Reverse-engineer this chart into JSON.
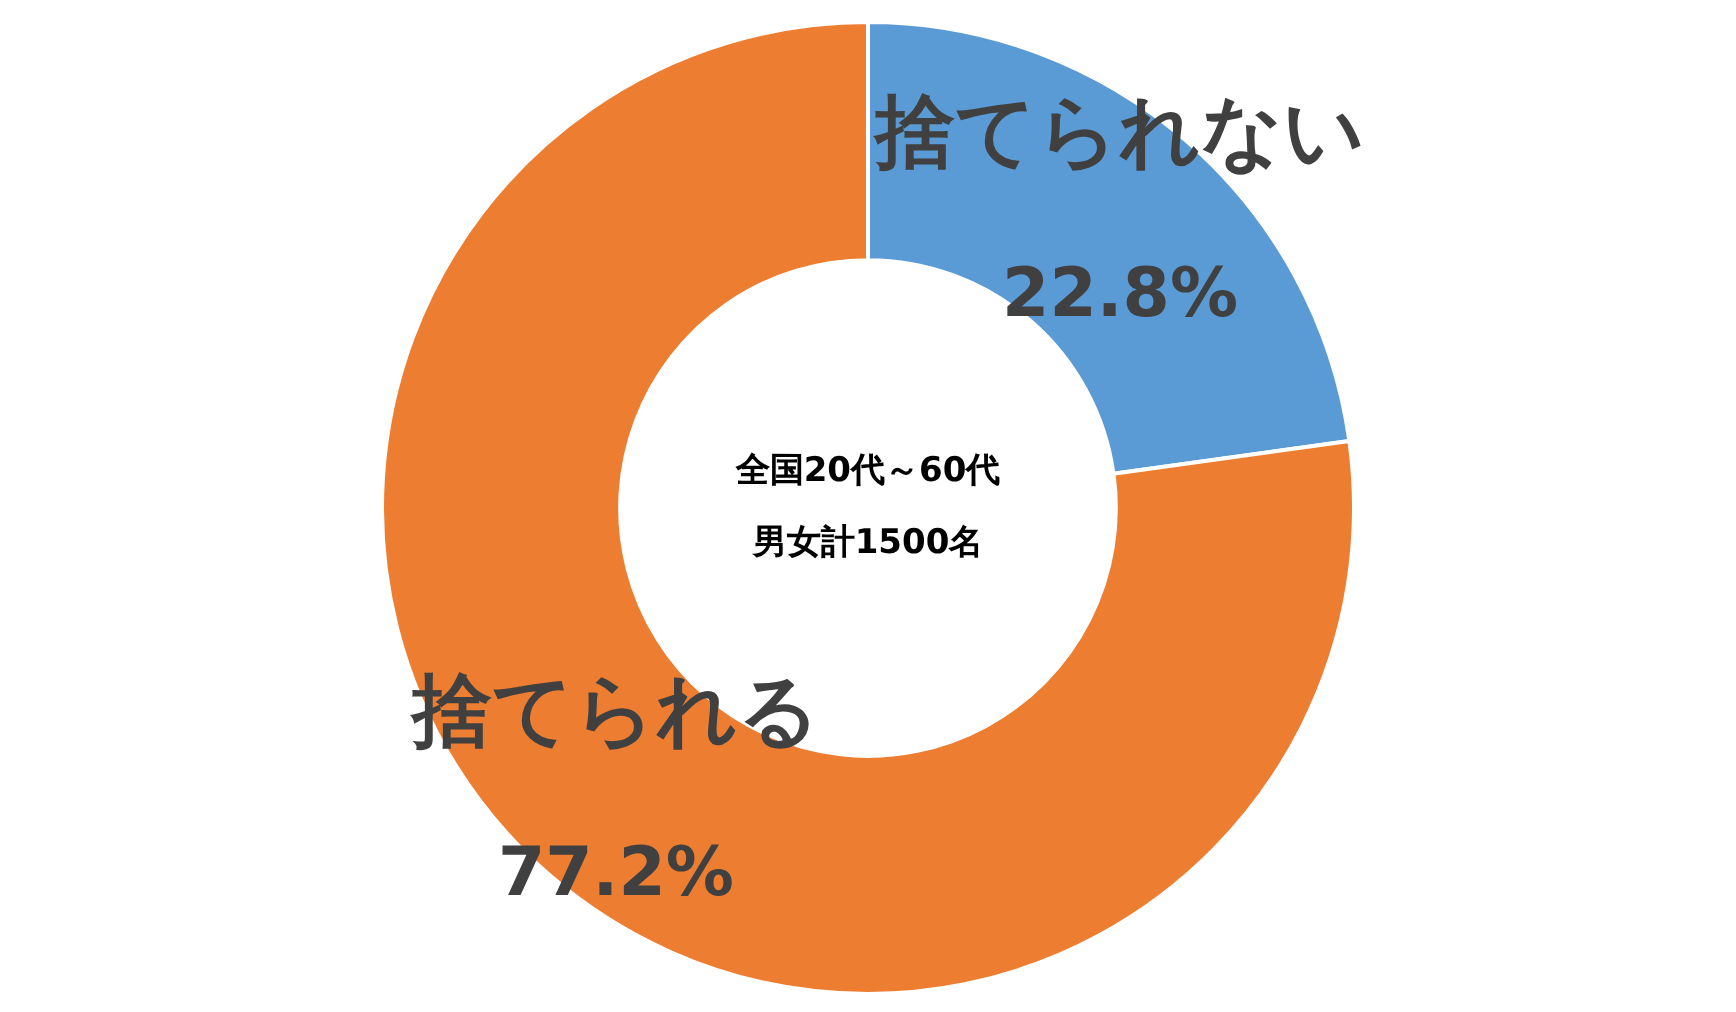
{
  "chart_data": {
    "type": "donut",
    "categories": [
      "捨てられない",
      "捨てられる"
    ],
    "values": [
      22.8,
      77.2
    ],
    "colors": [
      "#5b9bd5",
      "#ed7d31"
    ],
    "value_labels": [
      "22.8%",
      "77.2%"
    ],
    "annotations": [
      "全国20代～60代",
      "男女計1500名"
    ],
    "legend": false
  }
}
